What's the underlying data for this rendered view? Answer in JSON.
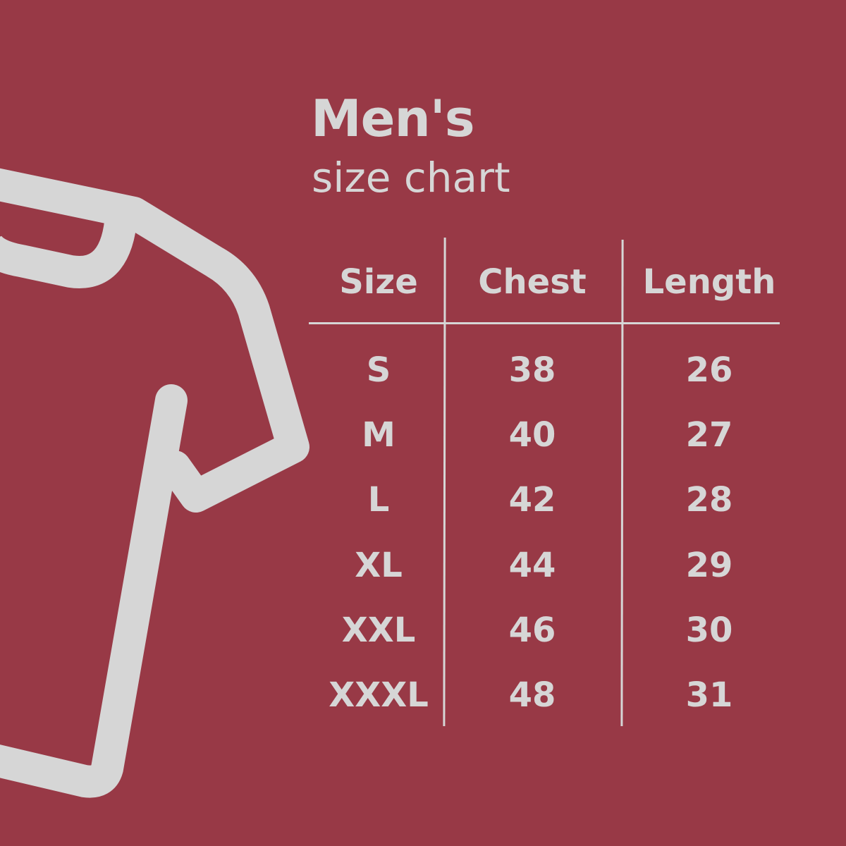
{
  "title": "Men's",
  "subtitle": "size chart",
  "colors": {
    "background": "#983946",
    "foreground": "#d6d6d6"
  },
  "icon": "t-shirt-icon",
  "table": {
    "headers": [
      "Size",
      "Chest",
      "Length"
    ],
    "rows": [
      [
        "S",
        "38",
        "26"
      ],
      [
        "M",
        "40",
        "27"
      ],
      [
        "L",
        "42",
        "28"
      ],
      [
        "XL",
        "44",
        "29"
      ],
      [
        "XXL",
        "46",
        "30"
      ],
      [
        "XXXL",
        "48",
        "31"
      ]
    ]
  }
}
